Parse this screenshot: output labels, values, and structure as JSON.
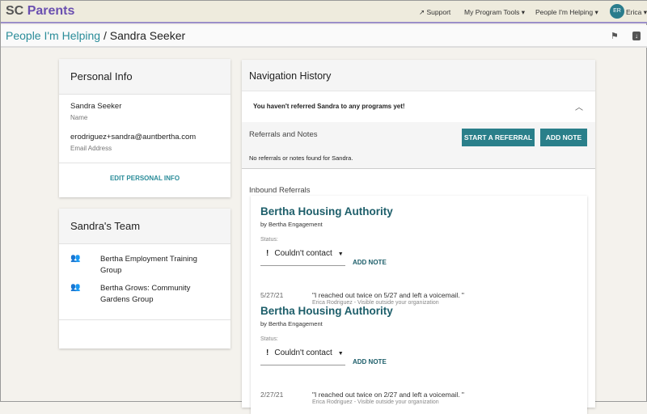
{
  "header": {
    "brand_prefix": "SC",
    "brand_name": "Parents",
    "support": "Support",
    "program_tools": "My Program Tools ▾",
    "people_helping": "People I'm Helping ▾",
    "avatar_initials": "ER",
    "user": "Erica ▾"
  },
  "breadcrumb": {
    "parent": "People I'm Helping",
    "separator": " / ",
    "current": "Sandra Seeker"
  },
  "personal_info": {
    "title": "Personal Info",
    "name": "Sandra Seeker",
    "name_label": "Name",
    "email": "erodriguez+sandra@auntbertha.com",
    "email_label": "Email Address",
    "edit": "EDIT PERSONAL INFO"
  },
  "team": {
    "title": "Sandra's Team",
    "members": [
      "Bertha Employment Training Group",
      "Bertha Grows: Community Gardens Group"
    ]
  },
  "navigation": {
    "title": "Navigation History",
    "notice": "You haven't referred Sandra to any programs yet!",
    "referrals_title": "Referrals and Notes",
    "start_referral": "START A REFERRAL",
    "add_note": "ADD NOTE",
    "empty": "No referrals or notes found for Sandra."
  },
  "inbound": {
    "title": "Inbound Referrals",
    "items": [
      {
        "org": "Bertha Housing Authority",
        "by": "by Bertha Engagement",
        "status_label": "Status:",
        "status": "Couldn't contact",
        "add_note": "ADD NOTE",
        "date": "5/27/21",
        "note": "\"I reached out twice on 5/27 and left a voicemail. \"",
        "meta": "Erica Rodriguez - Visible outside your organization"
      },
      {
        "org": "Bertha Housing Authority",
        "by": "by Bertha Engagement",
        "status_label": "Status:",
        "status": "Couldn't contact",
        "add_note": "ADD NOTE",
        "date": "2/27/21",
        "note": "\"I reached out twice on 2/27 and left a voicemail. \"",
        "meta": "Erica Rodriguez - Visible outside your organization"
      }
    ]
  }
}
